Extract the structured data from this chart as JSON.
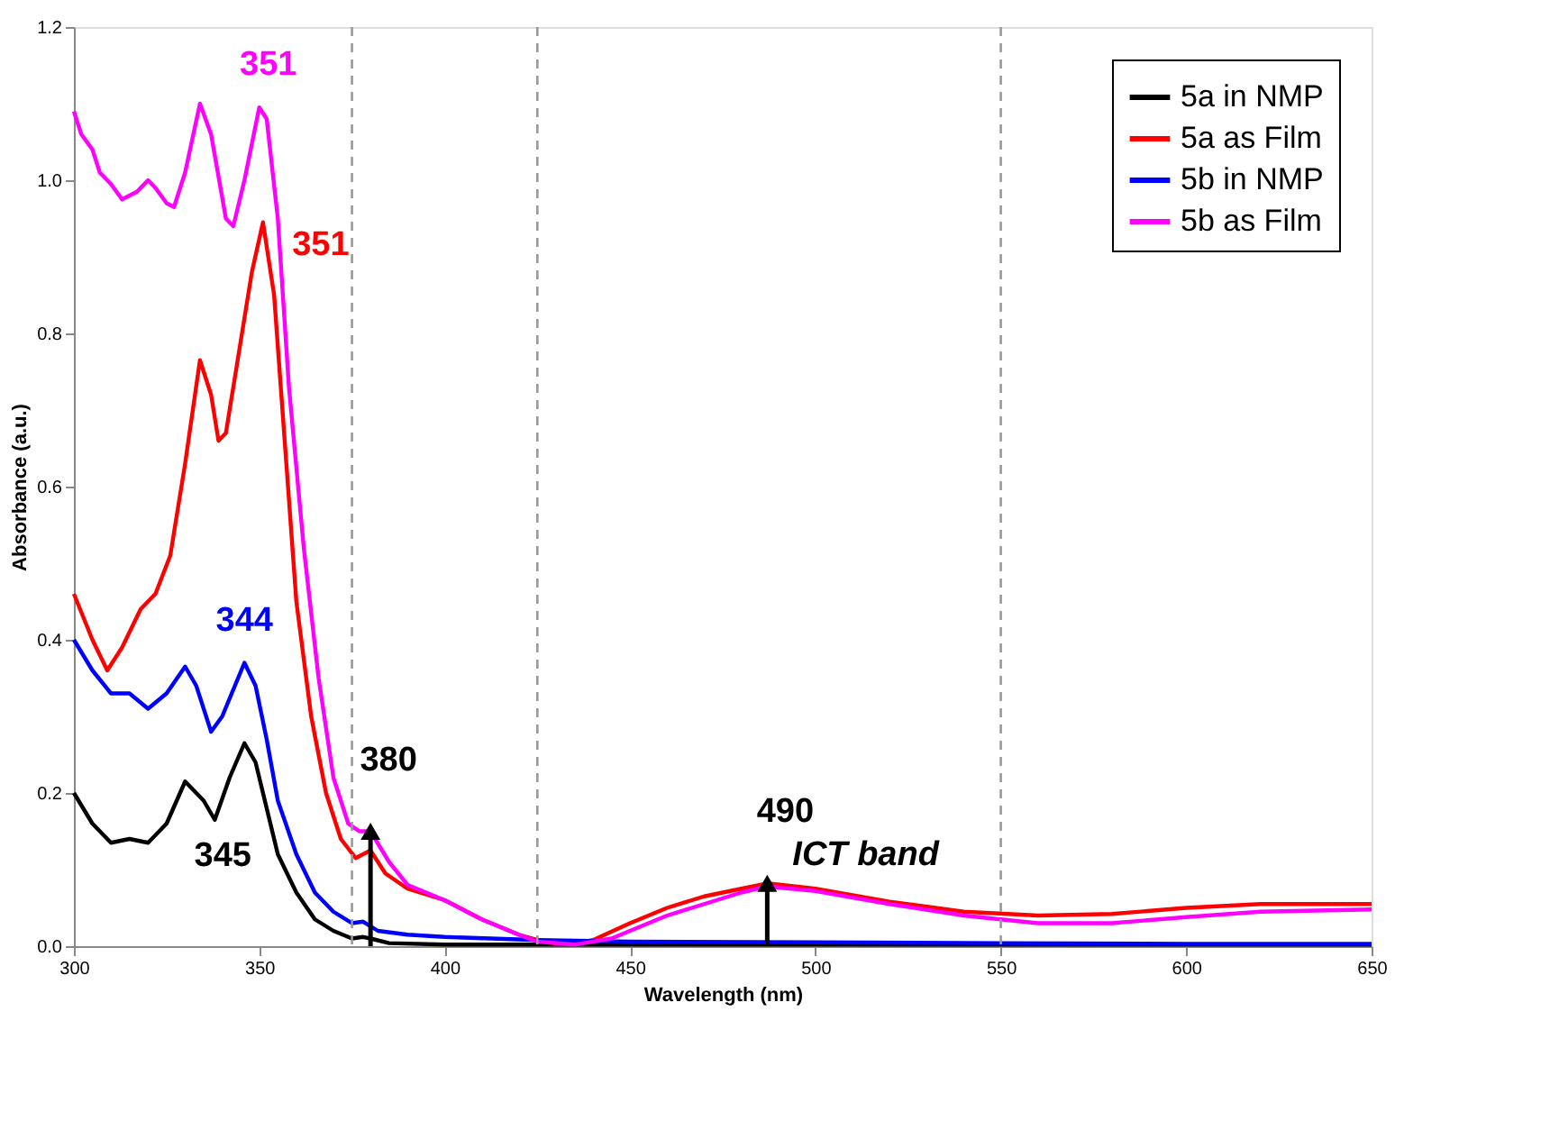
{
  "chart_data": {
    "type": "line",
    "xlabel": "Wavelength (nm)",
    "ylabel": "Absorbance (a.u.)",
    "xlim": [
      300,
      650
    ],
    "xticks": [
      300,
      350,
      400,
      450,
      500,
      550,
      600,
      650
    ],
    "ylim": [
      0,
      1.2
    ],
    "yticks": [
      {
        "value": 0,
        "label": "0.0"
      },
      0.2,
      0.4,
      0.6,
      0.8,
      {
        "value": 1,
        "label": "1.0"
      },
      1.2
    ],
    "grid": false,
    "legend": "top right",
    "line_style": "solid",
    "marker": "none",
    "series": [
      {
        "name": "5a in NMP",
        "color": "#000000",
        "x": [
          300,
          305,
          310,
          315,
          320,
          325,
          330,
          335,
          338,
          342,
          346,
          349,
          352,
          355,
          360,
          365,
          370,
          375,
          378,
          380,
          385,
          400,
          450,
          500,
          550,
          600,
          650
        ],
        "values": [
          0.2,
          0.16,
          0.135,
          0.14,
          0.135,
          0.16,
          0.215,
          0.19,
          0.165,
          0.22,
          0.265,
          0.24,
          0.18,
          0.12,
          0.07,
          0.035,
          0.02,
          0.01,
          0.012,
          0.01,
          0.004,
          0.002,
          0.002,
          0.002,
          0.002,
          0.002,
          0.002
        ]
      },
      {
        "name": "5a as Film",
        "color": "#ff0000",
        "x": [
          300,
          305,
          309,
          313,
          318,
          322,
          326,
          330,
          334,
          337,
          339,
          341,
          344,
          348,
          351,
          354,
          357,
          360,
          364,
          368,
          372,
          376,
          380,
          384,
          390,
          400,
          410,
          420,
          425,
          430,
          435,
          440,
          450,
          460,
          470,
          480,
          487,
          500,
          520,
          540,
          560,
          580,
          600,
          620,
          650
        ],
        "values": [
          0.46,
          0.4,
          0.36,
          0.39,
          0.44,
          0.46,
          0.51,
          0.63,
          0.765,
          0.72,
          0.66,
          0.67,
          0.76,
          0.88,
          0.945,
          0.85,
          0.65,
          0.45,
          0.3,
          0.2,
          0.14,
          0.115,
          0.125,
          0.095,
          0.075,
          0.06,
          0.035,
          0.015,
          0.008,
          0.003,
          0.003,
          0.008,
          0.03,
          0.05,
          0.065,
          0.075,
          0.082,
          0.075,
          0.058,
          0.045,
          0.04,
          0.042,
          0.05,
          0.055,
          0.055
        ]
      },
      {
        "name": "5b in NMP",
        "color": "#0000ff",
        "x": [
          300,
          305,
          310,
          315,
          320,
          325,
          330,
          333,
          337,
          340,
          346,
          349,
          352,
          355,
          360,
          365,
          370,
          375,
          378,
          382,
          390,
          400,
          425,
          450,
          500,
          550,
          600,
          650
        ],
        "values": [
          0.4,
          0.36,
          0.33,
          0.33,
          0.31,
          0.33,
          0.365,
          0.34,
          0.28,
          0.3,
          0.37,
          0.34,
          0.27,
          0.19,
          0.12,
          0.07,
          0.045,
          0.03,
          0.032,
          0.02,
          0.015,
          0.012,
          0.008,
          0.006,
          0.005,
          0.004,
          0.003,
          0.003
        ]
      },
      {
        "name": "5b as Film",
        "color": "#ff00ff",
        "x": [
          300,
          302,
          305,
          307,
          310,
          313,
          317,
          320,
          322,
          325,
          327,
          330,
          334,
          337,
          341,
          343,
          346,
          350,
          352,
          355,
          358,
          362,
          366,
          370,
          374,
          377,
          380,
          385,
          390,
          400,
          410,
          420,
          425,
          435,
          445,
          460,
          470,
          480,
          487,
          500,
          520,
          540,
          560,
          580,
          600,
          620,
          650
        ],
        "values": [
          1.09,
          1.06,
          1.04,
          1.01,
          0.995,
          0.975,
          0.985,
          1.0,
          0.99,
          0.97,
          0.965,
          1.01,
          1.1,
          1.06,
          0.95,
          0.94,
          1.0,
          1.095,
          1.08,
          0.95,
          0.73,
          0.52,
          0.35,
          0.22,
          0.16,
          0.15,
          0.15,
          0.11,
          0.08,
          0.06,
          0.035,
          0.015,
          0.006,
          0.002,
          0.01,
          0.04,
          0.055,
          0.07,
          0.078,
          0.072,
          0.055,
          0.04,
          0.03,
          0.03,
          0.038,
          0.045,
          0.048
        ]
      }
    ],
    "ref_lines": [
      {
        "axis": "x",
        "value": 375,
        "color": "#999999",
        "line_style": "dashed"
      },
      {
        "axis": "x",
        "value": 425,
        "color": "#999999",
        "line_style": "dashed"
      },
      {
        "axis": "x",
        "value": 550,
        "color": "#999999",
        "line_style": "dashed"
      }
    ],
    "annotations": [
      {
        "text": "351",
        "x": 350,
        "y": 1.095
      },
      {
        "text": "351",
        "x": 351,
        "y": 0.945
      },
      {
        "text": "344",
        "x": 346,
        "y": 0.37
      },
      {
        "text": "345",
        "x": 346,
        "y": 0.265
      },
      {
        "text": "380",
        "x": 380,
        "y": 0.15
      },
      {
        "text": "490",
        "x": 487,
        "y": 0.082
      },
      {
        "text": "ICT band",
        "x": 487,
        "y": 0.082
      }
    ]
  }
}
